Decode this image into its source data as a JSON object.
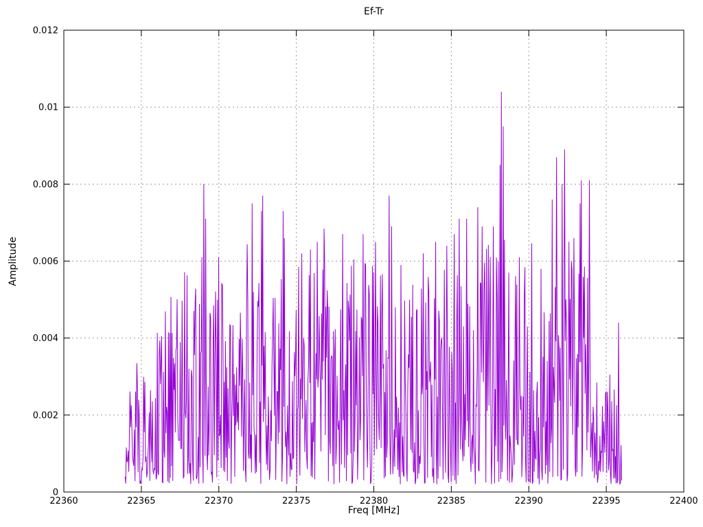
{
  "chart_data": {
    "type": "line",
    "title": "Ef-Tr",
    "xlabel": "Freq [MHz]",
    "ylabel": "Amplitude",
    "xlim": [
      22360,
      22400
    ],
    "ylim": [
      0,
      0.012
    ],
    "xticks": [
      22360,
      22365,
      22370,
      22375,
      22380,
      22385,
      22390,
      22395,
      22400
    ],
    "xtick_labels": [
      "22360",
      "22365",
      "22370",
      "22375",
      "22380",
      "22385",
      "22390",
      "22395",
      "22400"
    ],
    "yticks": [
      0,
      0.002,
      0.004,
      0.006,
      0.008,
      0.01,
      0.012
    ],
    "ytick_labels": [
      "0",
      "0.002",
      "0.004",
      "0.006",
      "0.008",
      "0.01",
      "0.012"
    ],
    "grid": true,
    "legend": false,
    "colors": {
      "series": "#9400d3",
      "grid": "#999999",
      "border": "#000000",
      "text": "#000000",
      "background": "#ffffff"
    },
    "signal": {
      "description": "dense noise-like amplitude spectrum drawn with lines; occupied band 22364-22396 MHz",
      "x_start": 22363.95,
      "x_end": 22396.0,
      "step": 0.04,
      "seed": 1234567,
      "noise_floor": 0.0002,
      "shape_power": 1.6,
      "boost_chance": 0.04,
      "envelope": [
        [
          22363.95,
          0.0018
        ],
        [
          22364.4,
          0.004
        ],
        [
          22365.0,
          0.0032
        ],
        [
          22365.6,
          0.0038
        ],
        [
          22366.3,
          0.0049
        ],
        [
          22367.0,
          0.0052
        ],
        [
          22368.0,
          0.005
        ],
        [
          22369.0,
          0.0056
        ],
        [
          22370.0,
          0.0056
        ],
        [
          22371.0,
          0.005
        ],
        [
          22372.0,
          0.0058
        ],
        [
          22373.0,
          0.0055
        ],
        [
          22374.0,
          0.0056
        ],
        [
          22375.0,
          0.0055
        ],
        [
          22376.0,
          0.0058
        ],
        [
          22377.0,
          0.006
        ],
        [
          22378.0,
          0.006
        ],
        [
          22379.0,
          0.0058
        ],
        [
          22380.0,
          0.0062
        ],
        [
          22381.0,
          0.006
        ],
        [
          22382.0,
          0.0054
        ],
        [
          22383.0,
          0.0055
        ],
        [
          22384.0,
          0.0058
        ],
        [
          22385.0,
          0.0062
        ],
        [
          22386.0,
          0.0064
        ],
        [
          22387.0,
          0.0064
        ],
        [
          22388.0,
          0.0063
        ],
        [
          22389.0,
          0.006
        ],
        [
          22390.0,
          0.0058
        ],
        [
          22391.0,
          0.0062
        ],
        [
          22392.0,
          0.0065
        ],
        [
          22393.0,
          0.0064
        ],
        [
          22393.8,
          0.006
        ],
        [
          22394.4,
          0.0035
        ],
        [
          22395.2,
          0.0028
        ],
        [
          22395.8,
          0.003
        ],
        [
          22396.0,
          0.0008
        ]
      ],
      "peaks": [
        [
          22368.9,
          0.0061
        ],
        [
          22369.05,
          0.008
        ],
        [
          22369.15,
          0.0071
        ],
        [
          22370.0,
          0.0061
        ],
        [
          22372.15,
          0.0075
        ],
        [
          22372.75,
          0.0073
        ],
        [
          22372.85,
          0.0077
        ],
        [
          22374.15,
          0.0073
        ],
        [
          22374.25,
          0.0066
        ],
        [
          22375.35,
          0.0062
        ],
        [
          22375.9,
          0.0063
        ],
        [
          22376.35,
          0.0065
        ],
        [
          22378.0,
          0.0067
        ],
        [
          22379.3,
          0.0067
        ],
        [
          22380.1,
          0.0065
        ],
        [
          22381.0,
          0.0077
        ],
        [
          22381.15,
          0.0069
        ],
        [
          22383.2,
          0.0062
        ],
        [
          22384.0,
          0.0065
        ],
        [
          22384.7,
          0.0064
        ],
        [
          22385.2,
          0.0067
        ],
        [
          22385.5,
          0.0071
        ],
        [
          22386.0,
          0.0071
        ],
        [
          22386.7,
          0.0074
        ],
        [
          22387.0,
          0.0069
        ],
        [
          22387.7,
          0.0069
        ],
        [
          22388.15,
          0.0085
        ],
        [
          22388.25,
          0.0104
        ],
        [
          22388.35,
          0.0095
        ],
        [
          22388.7,
          0.0057
        ],
        [
          22389.4,
          0.0061
        ],
        [
          22390.8,
          0.0058
        ],
        [
          22391.5,
          0.0076
        ],
        [
          22391.8,
          0.0087
        ],
        [
          22392.15,
          0.008
        ],
        [
          22392.3,
          0.0089
        ],
        [
          22392.6,
          0.0065
        ],
        [
          22392.9,
          0.0066
        ],
        [
          22393.3,
          0.0075
        ],
        [
          22393.4,
          0.0081
        ],
        [
          22393.9,
          0.0081
        ],
        [
          22395.8,
          0.0044
        ]
      ]
    }
  }
}
